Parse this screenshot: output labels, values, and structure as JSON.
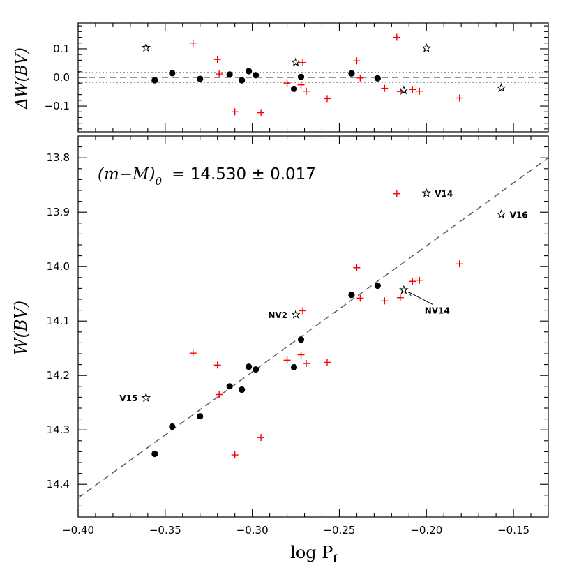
{
  "chart_data": [
    {
      "panel": "residuals",
      "type": "scatter",
      "ylabel": "ΔW(BV)",
      "xlim": [
        -0.4,
        -0.13
      ],
      "ylim": [
        -0.19,
        0.19
      ],
      "yticks": [
        -0.1,
        0.0,
        0.1
      ],
      "ytick_labels": [
        "−0.1",
        "0.0",
        "0.1"
      ],
      "reference_lines": {
        "dashed": [
          0.0
        ],
        "dotted": [
          -0.017,
          0.017
        ]
      },
      "series": [
        {
          "marker": "filled-circle",
          "color": "#000000",
          "points": [
            {
              "x": -0.356,
              "y": -0.01
            },
            {
              "x": -0.346,
              "y": 0.015
            },
            {
              "x": -0.33,
              "y": -0.005
            },
            {
              "x": -0.313,
              "y": 0.01
            },
            {
              "x": -0.306,
              "y": -0.01
            },
            {
              "x": -0.302,
              "y": 0.022
            },
            {
              "x": -0.298,
              "y": 0.008
            },
            {
              "x": -0.276,
              "y": -0.04
            },
            {
              "x": -0.272,
              "y": 0.002
            },
            {
              "x": -0.243,
              "y": 0.014
            },
            {
              "x": -0.228,
              "y": -0.003
            }
          ]
        },
        {
          "marker": "plus",
          "color": "#ff0000",
          "points": [
            {
              "x": -0.334,
              "y": 0.12
            },
            {
              "x": -0.32,
              "y": 0.063
            },
            {
              "x": -0.319,
              "y": 0.012
            },
            {
              "x": -0.31,
              "y": -0.12
            },
            {
              "x": -0.295,
              "y": -0.123
            },
            {
              "x": -0.28,
              "y": -0.02
            },
            {
              "x": -0.272,
              "y": -0.026
            },
            {
              "x": -0.271,
              "y": 0.052
            },
            {
              "x": -0.269,
              "y": -0.048
            },
            {
              "x": -0.257,
              "y": -0.074
            },
            {
              "x": -0.24,
              "y": 0.058
            },
            {
              "x": -0.238,
              "y": -0.002
            },
            {
              "x": -0.224,
              "y": -0.038
            },
            {
              "x": -0.217,
              "y": 0.14
            },
            {
              "x": -0.215,
              "y": -0.049
            },
            {
              "x": -0.208,
              "y": -0.042
            },
            {
              "x": -0.204,
              "y": -0.048
            },
            {
              "x": -0.181,
              "y": -0.072
            }
          ]
        },
        {
          "marker": "open-star",
          "color": "#000000",
          "points": [
            {
              "x": -0.361,
              "y": 0.104
            },
            {
              "x": -0.275,
              "y": 0.053
            },
            {
              "x": -0.213,
              "y": -0.045
            },
            {
              "x": -0.2,
              "y": 0.102
            },
            {
              "x": -0.157,
              "y": -0.037
            }
          ]
        }
      ]
    },
    {
      "panel": "main",
      "type": "scatter",
      "xlabel": "log P",
      "xlabel_subscript": "f",
      "ylabel": "W(BV)",
      "xlim": [
        -0.4,
        -0.13
      ],
      "ylim": [
        14.46,
        13.76
      ],
      "y_inverted": true,
      "xticks": [
        -0.4,
        -0.35,
        -0.3,
        -0.25,
        -0.2,
        -0.15
      ],
      "xtick_labels": [
        "−0.40",
        "−0.35",
        "−0.30",
        "−0.25",
        "−0.20",
        "−0.15"
      ],
      "yticks": [
        13.8,
        13.9,
        14.0,
        14.1,
        14.2,
        14.3,
        14.4
      ],
      "ytick_labels": [
        "13.8",
        "13.9",
        "14.0",
        "14.1",
        "14.2",
        "14.3",
        "14.4"
      ],
      "annotation": {
        "lhs_main": "(m−M)",
        "lhs_sub": "0",
        "rhs": "=  14.530  ±  0.017"
      },
      "fit_line": {
        "style": "dashed",
        "x": [
          -0.4,
          -0.13
        ],
        "y": [
          14.425,
          13.8
        ]
      },
      "series": [
        {
          "marker": "filled-circle",
          "color": "#000000",
          "points": [
            {
              "x": -0.356,
              "y": 14.344
            },
            {
              "x": -0.346,
              "y": 14.294
            },
            {
              "x": -0.33,
              "y": 14.275
            },
            {
              "x": -0.313,
              "y": 14.22
            },
            {
              "x": -0.306,
              "y": 14.226
            },
            {
              "x": -0.302,
              "y": 14.184
            },
            {
              "x": -0.298,
              "y": 14.189
            },
            {
              "x": -0.276,
              "y": 14.185
            },
            {
              "x": -0.272,
              "y": 14.134
            },
            {
              "x": -0.243,
              "y": 14.052
            },
            {
              "x": -0.228,
              "y": 14.035
            }
          ]
        },
        {
          "marker": "plus",
          "color": "#ff0000",
          "points": [
            {
              "x": -0.334,
              "y": 14.159
            },
            {
              "x": -0.32,
              "y": 14.181
            },
            {
              "x": -0.319,
              "y": 14.235
            },
            {
              "x": -0.31,
              "y": 14.346
            },
            {
              "x": -0.295,
              "y": 14.314
            },
            {
              "x": -0.28,
              "y": 14.172
            },
            {
              "x": -0.272,
              "y": 14.162
            },
            {
              "x": -0.271,
              "y": 14.081
            },
            {
              "x": -0.269,
              "y": 14.178
            },
            {
              "x": -0.257,
              "y": 14.176
            },
            {
              "x": -0.24,
              "y": 14.002
            },
            {
              "x": -0.238,
              "y": 14.058
            },
            {
              "x": -0.224,
              "y": 14.063
            },
            {
              "x": -0.217,
              "y": 13.866
            },
            {
              "x": -0.215,
              "y": 14.057
            },
            {
              "x": -0.208,
              "y": 14.027
            },
            {
              "x": -0.204,
              "y": 14.025
            },
            {
              "x": -0.181,
              "y": 13.995
            }
          ]
        },
        {
          "marker": "open-star",
          "color": "#000000",
          "points": [
            {
              "x": -0.361,
              "y": 14.241,
              "label": "V15"
            },
            {
              "x": -0.275,
              "y": 14.088,
              "label": "NV2"
            },
            {
              "x": -0.213,
              "y": 14.043,
              "label": "NV14"
            },
            {
              "x": -0.2,
              "y": 13.865,
              "label": "V14"
            },
            {
              "x": -0.157,
              "y": 13.904,
              "label": "V16"
            }
          ]
        }
      ]
    }
  ]
}
